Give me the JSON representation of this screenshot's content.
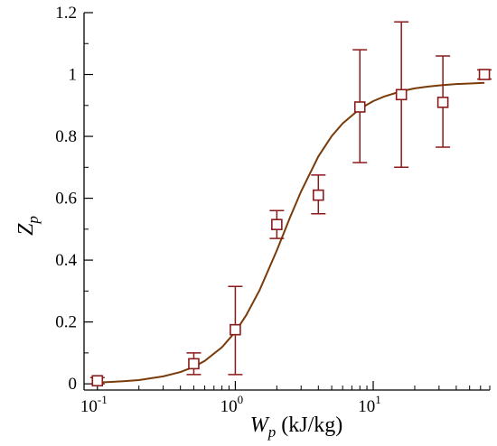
{
  "chart_data": {
    "type": "scatter",
    "x_scale": "log",
    "xlim": [
      0.08,
      70
    ],
    "ylim": [
      -0.02,
      1.2
    ],
    "xlabel": {
      "symbol": "W",
      "subscript": "p",
      "unit": " (kJ/kg)"
    },
    "ylabel": {
      "symbol": "Z",
      "subscript": "p"
    },
    "x_ticks": [
      {
        "value": 0.1,
        "base": "10",
        "exp": "-1"
      },
      {
        "value": 1,
        "base": "10",
        "exp": "0"
      },
      {
        "value": 10,
        "base": "10",
        "exp": "1"
      }
    ],
    "y_ticks": [
      {
        "value": 0,
        "label": "0"
      },
      {
        "value": 0.2,
        "label": "0.2"
      },
      {
        "value": 0.4,
        "label": "0.4"
      },
      {
        "value": 0.6,
        "label": "0.6"
      },
      {
        "value": 0.8,
        "label": "0.8"
      },
      {
        "value": 1.0,
        "label": "1"
      },
      {
        "value": 1.2,
        "label": "1.2"
      }
    ],
    "grid": false,
    "color": "#8b1a1a",
    "fit_color": "#7a3b0a",
    "series": [
      {
        "kind": "points_with_error_bars",
        "marker": "open-square",
        "points": [
          {
            "x": 0.1,
            "y": 0.01,
            "lo": 0.0,
            "hi": 0.02
          },
          {
            "x": 0.5,
            "y": 0.065,
            "lo": 0.03,
            "hi": 0.1
          },
          {
            "x": 1.0,
            "y": 0.175,
            "lo": 0.03,
            "hi": 0.315
          },
          {
            "x": 2.0,
            "y": 0.515,
            "lo": 0.47,
            "hi": 0.56
          },
          {
            "x": 4.0,
            "y": 0.61,
            "lo": 0.55,
            "hi": 0.675
          },
          {
            "x": 8.0,
            "y": 0.895,
            "lo": 0.715,
            "hi": 1.08
          },
          {
            "x": 16.0,
            "y": 0.935,
            "lo": 0.7,
            "hi": 1.17
          },
          {
            "x": 32.0,
            "y": 0.91,
            "lo": 0.765,
            "hi": 1.06
          },
          {
            "x": 64.0,
            "y": 1.0,
            "lo": 0.985,
            "hi": 1.015
          }
        ]
      },
      {
        "kind": "fitted_curve",
        "x": [
          0.1,
          0.15,
          0.2,
          0.3,
          0.4,
          0.5,
          0.6,
          0.8,
          1.0,
          1.2,
          1.5,
          2.0,
          2.5,
          3.0,
          4.0,
          5.0,
          6.0,
          8.0,
          10.0,
          12.0,
          16.0,
          20.0,
          25.0,
          32.0,
          40.0,
          50.0,
          64.0
        ],
        "y": [
          0.004,
          0.008,
          0.012,
          0.024,
          0.038,
          0.055,
          0.074,
          0.118,
          0.168,
          0.222,
          0.303,
          0.431,
          0.539,
          0.622,
          0.735,
          0.801,
          0.842,
          0.889,
          0.914,
          0.929,
          0.946,
          0.955,
          0.961,
          0.966,
          0.969,
          0.971,
          0.973
        ]
      }
    ]
  }
}
